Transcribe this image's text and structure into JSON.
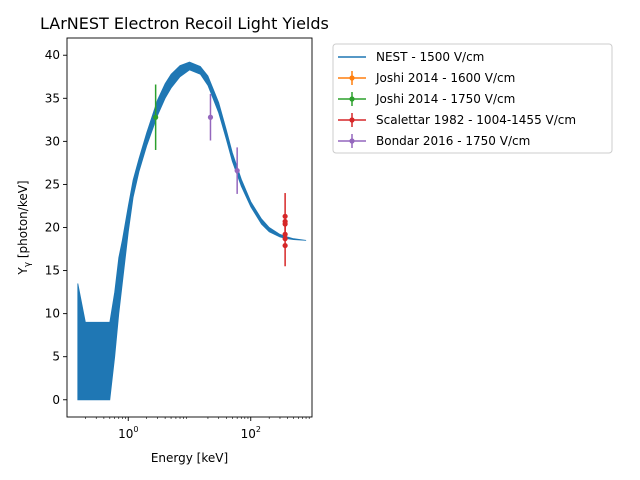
{
  "chart_data": {
    "type": "line",
    "title": "LArNEST Electron Recoil Light Yields",
    "xlabel": "Energy [keV]",
    "ylabel": "Y_γ [photon/keV]",
    "x_scale": "log",
    "xlim": [
      0.1,
      1000
    ],
    "ylim": [
      -2,
      42
    ],
    "y_ticks": [
      0,
      5,
      10,
      15,
      20,
      25,
      30,
      35,
      40
    ],
    "x_ticks": [
      {
        "value": 1,
        "label": "10",
        "exp": "0"
      },
      {
        "value": 100,
        "label": "10",
        "exp": "2"
      }
    ],
    "grid": false,
    "legend_placement": "outside upper-right",
    "series": [
      {
        "name": "NEST - 1500 V/cm",
        "color": "#1f77b4",
        "style": "band",
        "x": [
          0.15,
          0.2,
          0.3,
          0.4,
          0.5,
          0.6,
          0.7,
          0.8,
          1,
          1.2,
          1.5,
          2,
          3,
          4,
          5,
          7,
          10,
          15,
          20,
          30,
          40,
          50,
          70,
          100,
          150,
          200,
          300,
          400,
          500,
          800
        ],
        "lower": [
          0,
          0,
          0,
          0,
          0,
          5,
          10,
          13.5,
          19.5,
          23.5,
          26.5,
          29.5,
          33,
          35,
          36.2,
          37.5,
          38.3,
          37.8,
          36.5,
          33.3,
          30.2,
          27.7,
          24.8,
          22.4,
          20.4,
          19.5,
          18.9,
          18.7,
          18.6,
          18.5
        ],
        "upper": [
          13.5,
          9,
          9,
          9,
          9,
          12.5,
          16.5,
          18.5,
          22.5,
          25.5,
          28,
          31,
          34.8,
          36.7,
          37.8,
          38.8,
          39.2,
          38.7,
          37.6,
          34.5,
          31.3,
          28.7,
          25.6,
          23,
          21,
          20,
          19.2,
          18.9,
          18.7,
          18.5
        ]
      },
      {
        "name": "Joshi 2014 - 1600 V/cm",
        "color": "#ff7f0e",
        "style": "errorbar",
        "points": []
      },
      {
        "name": "Joshi 2014 - 1750 V/cm",
        "color": "#2ca02c",
        "style": "errorbar",
        "points": [
          {
            "x": 2.8,
            "y": 32.8,
            "yerr": 3.8
          }
        ]
      },
      {
        "name": "Scalettar 1982 - 1004-1455 V/cm",
        "color": "#d62728",
        "style": "errorbar",
        "points": [
          {
            "x": 364,
            "y": 21.3,
            "yerr": 2.7
          },
          {
            "x": 364,
            "y": 20.7,
            "yerr": 0
          },
          {
            "x": 364,
            "y": 20.4,
            "yerr": 0
          },
          {
            "x": 364,
            "y": 19.2,
            "yerr": 0
          },
          {
            "x": 364,
            "y": 18.7,
            "yerr": 0
          },
          {
            "x": 364,
            "y": 17.9,
            "yerr": 2.4
          }
        ]
      },
      {
        "name": "Bondar 2016 - 1750 V/cm",
        "color": "#9467bd",
        "style": "errorbar",
        "points": [
          {
            "x": 22,
            "y": 32.8,
            "yerr": 2.7
          },
          {
            "x": 60,
            "y": 26.6,
            "yerr": 2.7
          }
        ]
      }
    ]
  }
}
